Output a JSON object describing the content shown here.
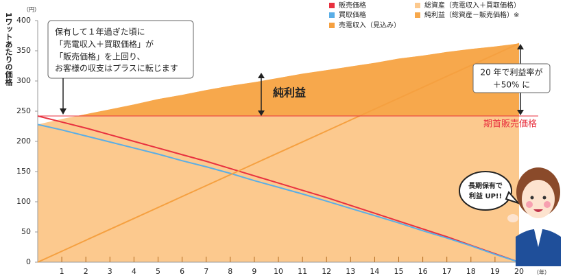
{
  "chart_data": {
    "type": "line",
    "y_axis_label": "1ワットあたりの価格",
    "y_unit": "（円）",
    "x_unit": "（年）",
    "x": [
      0,
      1,
      2,
      3,
      4,
      5,
      6,
      7,
      8,
      9,
      10,
      11,
      12,
      13,
      14,
      15,
      16,
      17,
      18,
      19,
      20
    ],
    "xlim": [
      0,
      20
    ],
    "xticks": [
      1,
      2,
      3,
      4,
      5,
      6,
      7,
      8,
      9,
      10,
      11,
      12,
      13,
      14,
      15,
      16,
      17,
      18,
      19,
      20
    ],
    "ylim": [
      0,
      400
    ],
    "yticks": [
      0,
      50,
      100,
      150,
      200,
      250,
      300,
      350,
      400
    ],
    "series": [
      {
        "name": "販売価格",
        "color": "#e8313f",
        "values": [
          242,
          232,
          222,
          211,
          200,
          189,
          178,
          167,
          155,
          143,
          131,
          119,
          107,
          94,
          81,
          68,
          55,
          42,
          28,
          14,
          0
        ]
      },
      {
        "name": "買取価格",
        "color": "#5aaee6",
        "values": [
          228,
          219,
          209,
          199,
          189,
          179,
          168,
          158,
          147,
          135,
          124,
          113,
          101,
          89,
          77,
          65,
          52,
          40,
          27,
          13,
          0
        ]
      },
      {
        "name": "売電収入（見込み）",
        "color": "#f5a040",
        "values": [
          0,
          18.1,
          36.2,
          54.3,
          72.4,
          90.5,
          108.6,
          126.7,
          144.8,
          162.9,
          181,
          199.1,
          217.2,
          235.3,
          253.4,
          271.5,
          289.6,
          307.7,
          325.8,
          343.9,
          362
        ]
      },
      {
        "name": "総資産（売電収入＋買取価格）",
        "color": "#fcc98e",
        "area": true,
        "values": [
          228,
          237,
          245,
          253,
          261,
          270,
          277,
          285,
          292,
          298,
          305,
          312,
          318,
          324,
          330,
          337,
          342,
          348,
          353,
          357,
          362
        ]
      },
      {
        "name": "純利益（総資産－販売価格）※",
        "color": "#f7a84c",
        "area": true,
        "baseline": "reference_line",
        "values": [
          -14,
          -5,
          3,
          11,
          19,
          28,
          35,
          43,
          50,
          56,
          63,
          70,
          76,
          82,
          88,
          95,
          100,
          106,
          111,
          115,
          120
        ]
      }
    ],
    "reference_line": {
      "value": 242,
      "label": "期首販売価格",
      "color": "#e8313f"
    },
    "annotations": {
      "callout": [
        "保有して１年過ぎた頃に",
        "「売電収入＋買取価格」が",
        "「販売価格」を上回り、",
        "お客様の収支はプラスに転じます"
      ],
      "profit_label": "純利益",
      "rate_box": [
        "20 年で利益率が",
        "＋50% に"
      ],
      "bubble": [
        "長期保有で",
        "利益 UP!!"
      ]
    }
  }
}
